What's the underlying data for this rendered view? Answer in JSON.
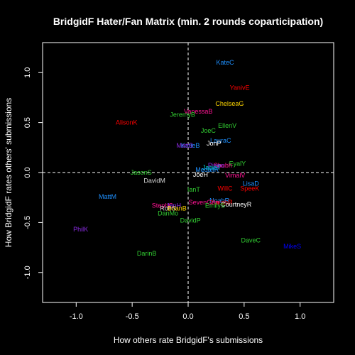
{
  "chart_data": {
    "type": "scatter",
    "title": "BridgidF Hater/Fan Matrix (min. 2 rounds coparticipation)",
    "xlabel": "How others rate BridgidF's submissions",
    "ylabel": "How BridgidF rates others' submissions",
    "xlim": [
      -1.3,
      1.3
    ],
    "ylim": [
      -1.3,
      1.3
    ],
    "xticks": [
      -1.0,
      -0.5,
      0.0,
      0.5,
      1.0
    ],
    "yticks": [
      -1.0,
      -0.5,
      0.0,
      0.5,
      1.0
    ],
    "xtick_labels": [
      "-1.0",
      "-0.5",
      "0.0",
      "0.5",
      "1.0"
    ],
    "ytick_labels": [
      "-1.0",
      "-0.5",
      "0.0",
      "0.5",
      "1.0"
    ],
    "grid": false,
    "reference_lines": {
      "x": 0,
      "y": 0,
      "style": "dashed"
    },
    "points": [
      {
        "label": "KateC",
        "x": 0.33,
        "y": 1.1,
        "color": "#1E90FF"
      },
      {
        "label": "YanivE",
        "x": 0.46,
        "y": 0.85,
        "color": "#FF0000"
      },
      {
        "label": "ChelseaG",
        "x": 0.37,
        "y": 0.69,
        "color": "#FFD700"
      },
      {
        "label": "VanessaB",
        "x": 0.09,
        "y": 0.61,
        "color": "#FF1493"
      },
      {
        "label": "JeremyB",
        "x": -0.05,
        "y": 0.58,
        "color": "#32CD32"
      },
      {
        "label": "AlisonK",
        "x": -0.55,
        "y": 0.5,
        "color": "#FF0000"
      },
      {
        "label": "EllenV",
        "x": 0.35,
        "y": 0.47,
        "color": "#32CD32"
      },
      {
        "label": "JoeC",
        "x": 0.18,
        "y": 0.42,
        "color": "#32CD32"
      },
      {
        "label": "LauraC",
        "x": 0.29,
        "y": 0.32,
        "color": "#1E90FF"
      },
      {
        "label": "JonP",
        "x": 0.23,
        "y": 0.29,
        "color": "#FFFFFF"
      },
      {
        "label": "KatieB",
        "x": 0.02,
        "y": 0.27,
        "color": "#1E90FF"
      },
      {
        "label": "MattB",
        "x": -0.03,
        "y": 0.27,
        "color": "#8A2BE2"
      },
      {
        "label": "EyalY",
        "x": 0.44,
        "y": 0.09,
        "color": "#32CD32"
      },
      {
        "label": "Shubh",
        "x": 0.31,
        "y": 0.07,
        "color": "#FF1493"
      },
      {
        "label": "Piepo",
        "x": 0.25,
        "y": 0.07,
        "color": "#8A2BE2"
      },
      {
        "label": "JasonS",
        "x": -0.42,
        "y": 0.0,
        "color": "#32CD32"
      },
      {
        "label": "JasiaT",
        "x": 0.21,
        "y": 0.05,
        "color": "#00CED1"
      },
      {
        "label": "MedallR",
        "x": 0.17,
        "y": 0.03,
        "color": "#1E90FF"
      },
      {
        "label": "JoeH",
        "x": 0.11,
        "y": -0.02,
        "color": "#FFFFFF"
      },
      {
        "label": "VimalV",
        "x": 0.42,
        "y": -0.03,
        "color": "#FF1493"
      },
      {
        "label": "DavidM",
        "x": -0.3,
        "y": -0.08,
        "color": "#D3D3D3"
      },
      {
        "label": "LisaD",
        "x": 0.56,
        "y": -0.11,
        "color": "#1E90FF"
      },
      {
        "label": "WillC",
        "x": 0.33,
        "y": -0.16,
        "color": "#FF0000"
      },
      {
        "label": "SpeeK",
        "x": 0.55,
        "y": -0.16,
        "color": "#FF0000"
      },
      {
        "label": "IanT",
        "x": 0.05,
        "y": -0.17,
        "color": "#32CD32"
      },
      {
        "label": "MattM",
        "x": -0.72,
        "y": -0.24,
        "color": "#1E90FF"
      },
      {
        "label": "NoahR",
        "x": 0.28,
        "y": -0.28,
        "color": "#1E90FF"
      },
      {
        "label": "SarahR",
        "x": 0.3,
        "y": -0.3,
        "color": "#FF0000"
      },
      {
        "label": "CourtneyR",
        "x": 0.43,
        "y": -0.32,
        "color": "#FFFFFF"
      },
      {
        "label": "SevenGrm",
        "x": 0.14,
        "y": -0.3,
        "color": "#FF1493"
      },
      {
        "label": "EmilyS",
        "x": 0.24,
        "y": -0.33,
        "color": "#32CD32"
      },
      {
        "label": "StephC",
        "x": -0.23,
        "y": -0.33,
        "color": "#FF1493"
      },
      {
        "label": "JenH",
        "x": -0.13,
        "y": -0.33,
        "color": "#8A2BE2"
      },
      {
        "label": "RobS",
        "x": -0.18,
        "y": -0.36,
        "color": "#D3D3D3"
      },
      {
        "label": "BrianB",
        "x": -0.1,
        "y": -0.36,
        "color": "#FFD700"
      },
      {
        "label": "DanMo",
        "x": -0.18,
        "y": -0.41,
        "color": "#32CD32"
      },
      {
        "label": "DavidP",
        "x": 0.02,
        "y": -0.48,
        "color": "#32CD32"
      },
      {
        "label": "PhilK",
        "x": -0.96,
        "y": -0.57,
        "color": "#8A2BE2"
      },
      {
        "label": "DaveC",
        "x": 0.56,
        "y": -0.68,
        "color": "#32CD32"
      },
      {
        "label": "MikeS",
        "x": 0.93,
        "y": -0.74,
        "color": "#0000FF"
      },
      {
        "label": "DarinB",
        "x": -0.37,
        "y": -0.81,
        "color": "#32CD32"
      }
    ]
  }
}
